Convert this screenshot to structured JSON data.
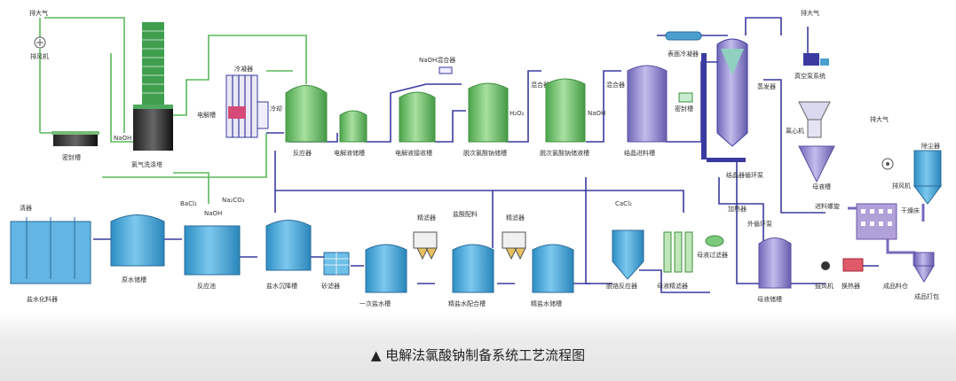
{
  "caption": {
    "marker": "▲",
    "text": "电解法氯酸钠制备系统工艺流程图"
  },
  "labels": {
    "vent_top_left": "排大气",
    "fan_top_left": "排风机",
    "seal_tank": "密封槽",
    "chlorine_scrubber": "氯气洗涤塔",
    "naoh_top": "NaOH",
    "cooler_top": "冷凝器",
    "electrolyzer": "电解槽",
    "cooling_box": "冷却",
    "reactor": "反应器",
    "electrolyte_storage": "电解液储槽",
    "electrolyte_tank": "电解液接收槽",
    "naoh_mixer": "NaOH混合器",
    "h2o2_1": "H₂O₂",
    "mixer_1": "混合器",
    "dechlor_tank_1": "脱次氯酸钠储槽",
    "h2o2_2": "NaOH",
    "mixer_2": "混合器",
    "dechlor_tank_2": "脱次氯酸钠储液槽",
    "crystal_feed_tank": "结晶进料槽",
    "surface_condenser": "表面冷凝器",
    "vent_top_right": "排大气",
    "vacuum_system": "真空泵系统",
    "seal_tank_2": "密封槽",
    "evaporator": "蒸发器",
    "separator": "结晶器循环泵",
    "cyclone": "离心机",
    "mother_tank": "母液槽",
    "heater": "加热器",
    "circulation": "外循环泵",
    "feed_screw": "进料螺旋",
    "vent_right": "排大气",
    "fan_right": "排风机",
    "dust_collector": "除尘器",
    "dryer": "干燥床",
    "blower": "鼓风机",
    "heat_exchanger": "换热器",
    "product_silo": "成品料仓",
    "packing": "成品打包",
    "water_label": "清器",
    "salt_dissolver": "盐水化料器",
    "raw_water_tank": "原水储槽",
    "bacl2": "BaCl₂",
    "na2co3": "Na₂CO₃",
    "naoh_bottom": "NaOH",
    "reaction_pool": "反应池",
    "brine_storage": "盐水沉降槽",
    "sand_filter": "砂滤器",
    "primary_brine_tank": "一次盐水槽",
    "precision_filter_1": "精滤器",
    "hcl_label": "盐酸配料",
    "refined_brine_mix": "精盐水配合槽",
    "precision_filter_2": "精滤器",
    "refined_brine_tank": "精盐水储槽",
    "cacl2": "CaCl₂",
    "dechrome_reactor": "脱铬反应器",
    "filter_press": "母液精滤器",
    "solid_filter": "母液过滤器",
    "liquid_tank": "母液储槽"
  },
  "colors": {
    "tank_blue": "#4aa8d8",
    "tank_green": "#7cc87c",
    "tank_purple": "#8a7fc8",
    "pipe_blue": "#3a3aa0",
    "pipe_green": "#5cb85c",
    "pipe_purple": "#7a68c0"
  }
}
